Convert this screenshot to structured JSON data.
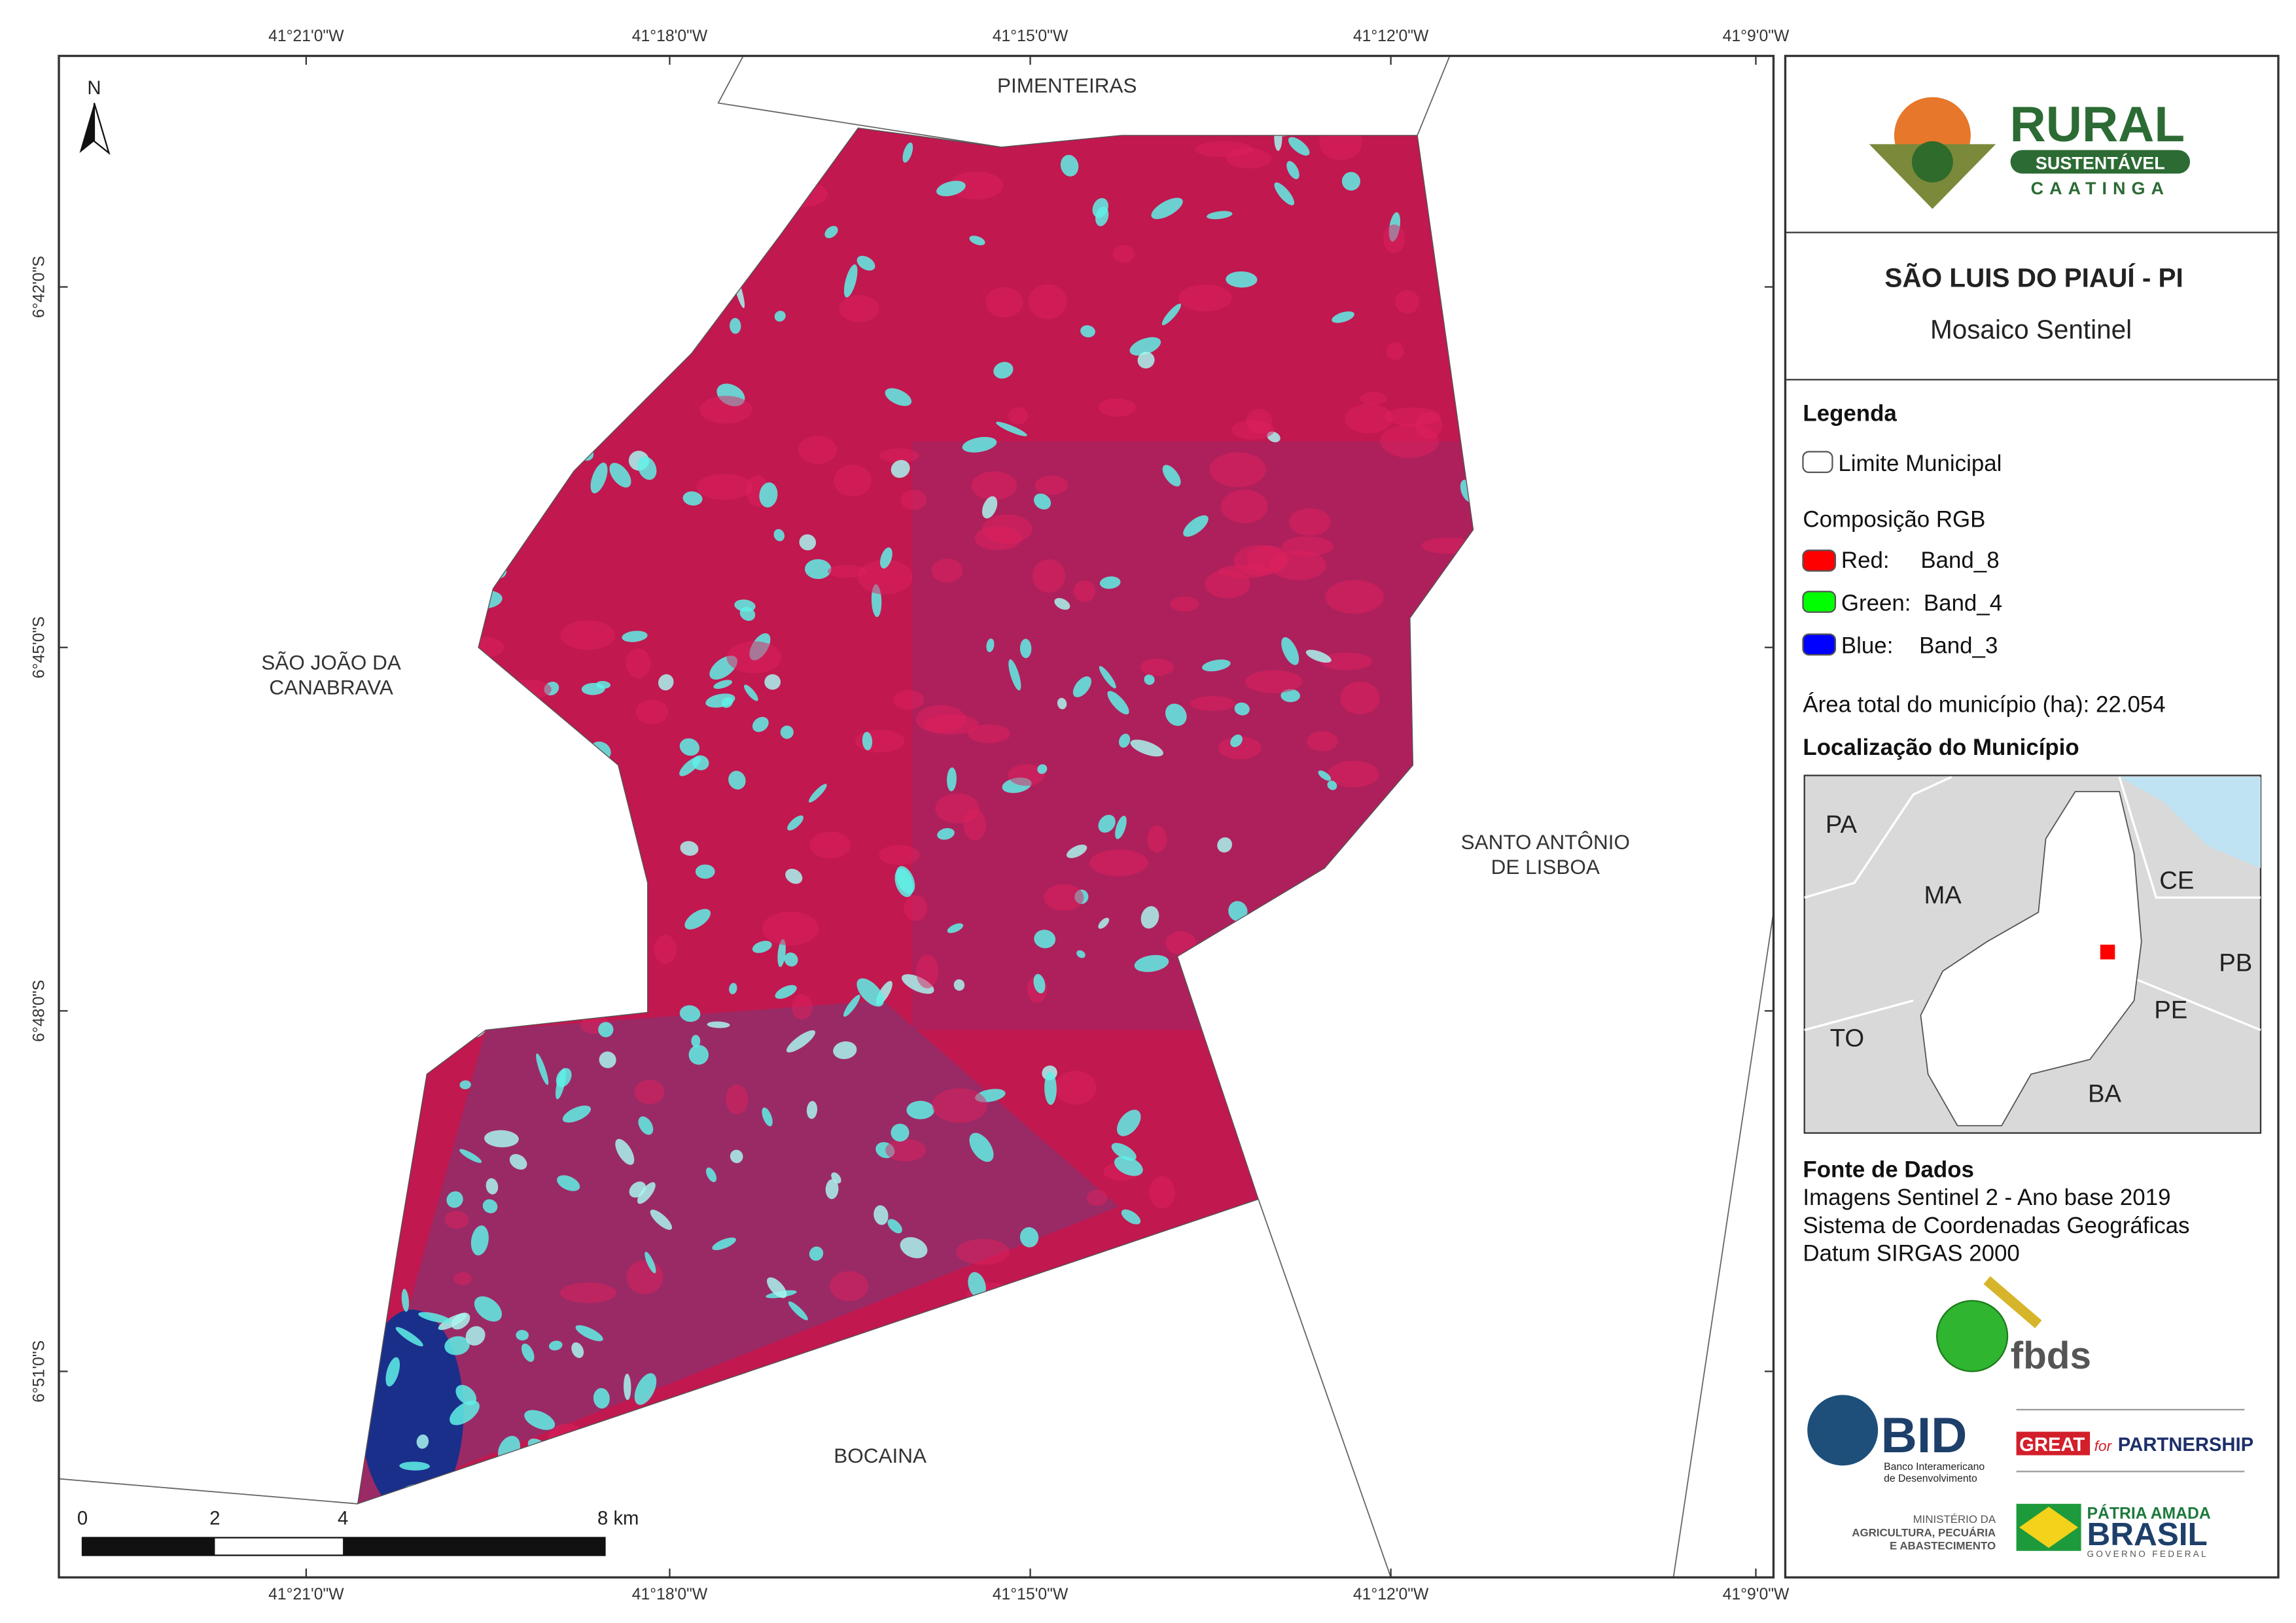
{
  "map": {
    "north_label": "N",
    "top_ticks": [
      "41°21'0\"W",
      "41°18'0\"W",
      "41°15'0\"W",
      "41°12'0\"W",
      "41°9'0\"W"
    ],
    "bottom_ticks": [
      "41°21'0\"W",
      "41°18'0\"W",
      "41°15'0\"W",
      "41°12'0\"W",
      "41°9'0\"W"
    ],
    "left_ticks": [
      "6°42'0\"S",
      "6°45'0\"S",
      "6°48'0\"S",
      "6°51'0\"S"
    ],
    "neighbors": {
      "north": [
        "PIMENTEIRAS"
      ],
      "west": [
        "SÃO JOÃO DA",
        "CANABRAVA"
      ],
      "east": [
        "SANTO ANTÔNIO",
        "DE LISBOA"
      ],
      "south": [
        "BOCAINA"
      ]
    },
    "scale_bar": [
      "0",
      "2",
      "4",
      "8 km"
    ]
  },
  "panel": {
    "logo": {
      "main": "RURAL",
      "ribbon": "SUSTENTÁVEL",
      "sub": "CAATINGA"
    },
    "title": "SÃO LUIS DO PIAUÍ - PI",
    "subtitle": "Mosaico Sentinel",
    "legend": {
      "title": "Legenda",
      "boundary": "Limite Municipal",
      "rgb_title": "Composição RGB",
      "bands": [
        {
          "channel": "Red:",
          "band": "Band_8"
        },
        {
          "channel": "Green:",
          "band": "Band_4"
        },
        {
          "channel": "Blue:",
          "band": "Band_3"
        }
      ],
      "area": "Área total do município (ha): 22.054"
    },
    "location": {
      "title": "Localização do Município",
      "states": [
        "PA",
        "MA",
        "CE",
        "PB",
        "PE",
        "TO",
        "BA"
      ]
    },
    "sources": {
      "title": "Fonte de Dados",
      "lines": [
        "Imagens Sentinel 2 - Ano base 2019",
        "Sistema de Coordenadas Geográficas",
        "Datum SIRGAS 2000"
      ]
    },
    "partners": {
      "fbds": "fbds",
      "bid": "BID",
      "bid_name": [
        "Banco Interamericano",
        "de Desenvolvimento"
      ],
      "great": "GREAT",
      "great_rest": "PARTNERSHIP",
      "great_for": "for",
      "ministry": [
        "MINISTÉRIO DA",
        "AGRICULTURA, PECUÁRIA",
        "E ABASTECIMENTO"
      ],
      "brasil": [
        "PÁTRIA AMADA",
        "BRASIL",
        "GOVERNO FEDERAL"
      ]
    }
  }
}
